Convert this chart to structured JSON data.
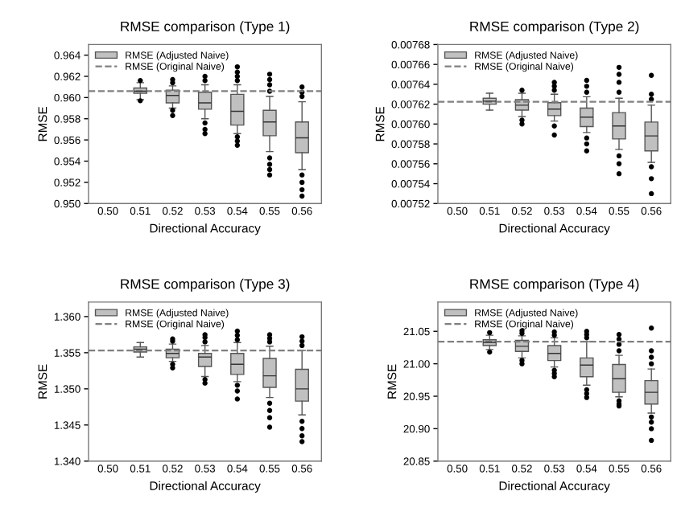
{
  "chart_data": [
    {
      "type": "box",
      "title": "RMSE comparison (Type 1)",
      "xlabel": "Directional Accuracy",
      "ylabel": "RMSE",
      "categories": [
        "0.50",
        "0.51",
        "0.52",
        "0.53",
        "0.54",
        "0.55",
        "0.56"
      ],
      "ylim": [
        0.95,
        0.965
      ],
      "yticks": [
        {
          "value": 0.95,
          "label": "0.950"
        },
        0.952,
        0.954,
        0.956,
        0.958,
        {
          "value": 0.96,
          "label": "0.960"
        },
        0.962,
        0.964
      ],
      "series": [
        {
          "name": "RMSE (Adjusted Naive)",
          "color": "#c0c0c0",
          "boxes": [
            null,
            {
              "low": 0.9598,
              "q1": 0.9604,
              "median": 0.9606,
              "q3": 0.9609,
              "high": 0.9614,
              "outliers": [
                0.9616,
                0.9597
              ]
            },
            {
              "low": 0.959,
              "q1": 0.9595,
              "median": 0.9602,
              "q3": 0.9607,
              "high": 0.9611,
              "outliers": [
                0.9614,
                0.9617,
                0.9588,
                0.9583
              ]
            },
            {
              "low": 0.958,
              "q1": 0.9589,
              "median": 0.9595,
              "q3": 0.9605,
              "high": 0.9612,
              "outliers": [
                0.9616,
                0.962,
                0.9576,
                0.957,
                0.9566
              ]
            },
            {
              "low": 0.9566,
              "q1": 0.9574,
              "median": 0.9587,
              "q3": 0.9603,
              "high": 0.9612,
              "outliers": [
                0.9616,
                0.962,
                0.9624,
                0.9629,
                0.9563,
                0.9559,
                0.9555
              ]
            },
            {
              "low": 0.9549,
              "q1": 0.9564,
              "median": 0.9577,
              "q3": 0.9588,
              "high": 0.9601,
              "outliers": [
                0.9606,
                0.9612,
                0.9617,
                0.9622,
                0.9543,
                0.9537,
                0.9532,
                0.9527
              ]
            },
            {
              "low": 0.9532,
              "q1": 0.9548,
              "median": 0.9562,
              "q3": 0.9577,
              "high": 0.9596,
              "outliers": [
                0.9601,
                0.9605,
                0.961,
                0.9527,
                0.952,
                0.9513,
                0.9507
              ]
            }
          ]
        }
      ],
      "ref_lines": [
        {
          "axis": "y",
          "value": 0.9606,
          "label": "RMSE (Original Naive)",
          "color": "#808080",
          "line_style": "dashed"
        }
      ],
      "legend": "top left"
    },
    {
      "type": "box",
      "title": "RMSE comparison (Type 2)",
      "xlabel": "Directional Accuracy",
      "ylabel": "RMSE",
      "categories": [
        "0.50",
        "0.51",
        "0.52",
        "0.53",
        "0.54",
        "0.55",
        "0.56"
      ],
      "ylim": [
        0.00752,
        0.00768
      ],
      "yticks": [
        0.00752,
        0.00754,
        0.00756,
        0.00758,
        {
          "value": 0.0076,
          "label": "0.00760"
        },
        0.00762,
        0.00764,
        0.00766,
        0.00768
      ],
      "series": [
        {
          "name": "RMSE (Adjusted Naive)",
          "color": "#c0c0c0",
          "boxes": [
            null,
            {
              "low": 0.007614,
              "q1": 0.00762,
              "median": 0.007623,
              "q3": 0.007626,
              "high": 0.007631
            },
            {
              "low": 0.0076075,
              "q1": 0.007614,
              "median": 0.007619,
              "q3": 0.0076245,
              "high": 0.007631,
              "outliers": [
                0.007634,
                0.007604,
                0.0076
              ]
            },
            {
              "low": 0.007603,
              "q1": 0.0076085,
              "median": 0.007615,
              "q3": 0.0076215,
              "high": 0.00763,
              "outliers": [
                0.007634,
                0.007638,
                0.007642,
                0.007598,
                0.007589
              ]
            },
            {
              "low": 0.0075915,
              "q1": 0.0075975,
              "median": 0.007607,
              "q3": 0.007616,
              "high": 0.0076275,
              "outliers": [
                0.007632,
                0.007638,
                0.007644,
                0.007586,
                0.00758,
                0.007573
              ]
            },
            {
              "low": 0.0075745,
              "q1": 0.007585,
              "median": 0.007598,
              "q3": 0.0076115,
              "high": 0.007626,
              "outliers": [
                0.007632,
                0.007642,
                0.00765,
                0.007657,
                0.007568,
                0.00756,
                0.00755
              ]
            },
            {
              "low": 0.0075615,
              "q1": 0.007573,
              "median": 0.007588,
              "q3": 0.007602,
              "high": 0.007619,
              "outliers": [
                0.007625,
                0.00763,
                0.007649,
                0.007557,
                0.007545,
                0.00753
              ]
            }
          ]
        }
      ],
      "ref_lines": [
        {
          "axis": "y",
          "value": 0.0076225,
          "label": "RMSE (Original Naive)",
          "color": "#808080",
          "line_style": "dashed"
        }
      ],
      "legend": "top left"
    },
    {
      "type": "box",
      "title": "RMSE comparison (Type 3)",
      "xlabel": "Directional Accuracy",
      "ylabel": "RMSE",
      "categories": [
        "0.50",
        "0.51",
        "0.52",
        "0.53",
        "0.54",
        "0.55",
        "0.56"
      ],
      "ylim": [
        1.34,
        1.362
      ],
      "yticks": [
        {
          "value": 1.34,
          "label": "1.340"
        },
        {
          "value": 1.345,
          "label": "1.345"
        },
        {
          "value": 1.35,
          "label": "1.350"
        },
        {
          "value": 1.355,
          "label": "1.355"
        },
        {
          "value": 1.36,
          "label": "1.360"
        }
      ],
      "series": [
        {
          "name": "RMSE (Adjusted Naive)",
          "color": "#c0c0c0",
          "boxes": [
            null,
            {
              "low": 1.3544,
              "q1": 1.3551,
              "median": 1.3555,
              "q3": 1.3558,
              "high": 1.3564
            },
            {
              "low": 1.3538,
              "q1": 1.3543,
              "median": 1.3549,
              "q3": 1.3555,
              "high": 1.3562,
              "outliers": [
                1.3566,
                1.3569,
                1.3534,
                1.3529
              ]
            },
            {
              "low": 1.3517,
              "q1": 1.3531,
              "median": 1.3544,
              "q3": 1.3549,
              "high": 1.356,
              "outliers": [
                1.3565,
                1.3571,
                1.3575,
                1.3513,
                1.3508
              ]
            },
            {
              "low": 1.351,
              "q1": 1.352,
              "median": 1.3534,
              "q3": 1.3549,
              "high": 1.3564,
              "outliers": [
                1.3568,
                1.3574,
                1.358,
                1.3505,
                1.3497,
                1.3486
              ]
            },
            {
              "low": 1.3488,
              "q1": 1.3502,
              "median": 1.3518,
              "q3": 1.3542,
              "high": 1.3559,
              "outliers": [
                1.3565,
                1.357,
                1.3575,
                1.348,
                1.347,
                1.346,
                1.3447
              ]
            },
            {
              "low": 1.3464,
              "q1": 1.3483,
              "median": 1.35,
              "q3": 1.3527,
              "high": 1.3553,
              "outliers": [
                1.356,
                1.3566,
                1.3572,
                1.3455,
                1.3445,
                1.3435,
                1.3427
              ]
            }
          ]
        }
      ],
      "ref_lines": [
        {
          "axis": "y",
          "value": 1.3553,
          "label": "RMSE (Original Naive)",
          "color": "#808080",
          "line_style": "dashed"
        }
      ],
      "legend": "top left"
    },
    {
      "type": "box",
      "title": "RMSE comparison (Type 4)",
      "xlabel": "Directional Accuracy",
      "ylabel": "RMSE",
      "categories": [
        "0.50",
        "0.51",
        "0.52",
        "0.53",
        "0.54",
        "0.55",
        "0.56"
      ],
      "ylim": [
        20.85,
        21.095
      ],
      "yticks": [
        20.85,
        {
          "value": 20.9,
          "label": "20.90"
        },
        20.95,
        {
          "value": 21.0,
          "label": "21.00"
        },
        21.05
      ],
      "series": [
        {
          "name": "RMSE (Adjusted Naive)",
          "color": "#c0c0c0",
          "boxes": [
            null,
            {
              "low": 21.022,
              "q1": 21.028,
              "median": 21.033,
              "q3": 21.037,
              "high": 21.044,
              "outliers": [
                21.048,
                21.018
              ]
            },
            {
              "low": 21.009,
              "q1": 21.019,
              "median": 21.027,
              "q3": 21.036,
              "high": 21.043,
              "outliers": [
                21.047,
                21.051,
                21.005,
                21.0
              ]
            },
            {
              "low": 20.995,
              "q1": 21.005,
              "median": 21.016,
              "q3": 21.028,
              "high": 21.04,
              "outliers": [
                21.044,
                21.049,
                20.99,
                20.985,
                20.98
              ]
            },
            {
              "low": 20.967,
              "q1": 20.98,
              "median": 20.998,
              "q3": 21.009,
              "high": 21.034,
              "outliers": [
                21.04,
                21.045,
                21.05,
                20.96,
                20.954,
                20.948
              ]
            },
            {
              "low": 20.949,
              "q1": 20.956,
              "median": 20.977,
              "q3": 20.999,
              "high": 21.013,
              "outliers": [
                21.02,
                21.03,
                21.038,
                21.045,
                20.943,
                20.938,
                20.935
              ]
            },
            {
              "low": 20.924,
              "q1": 20.938,
              "median": 20.956,
              "q3": 20.974,
              "high": 20.992,
              "outliers": [
                21.0,
                21.01,
                21.02,
                21.055,
                20.918,
                20.91,
                20.9,
                20.882
              ]
            }
          ]
        }
      ],
      "ref_lines": [
        {
          "axis": "y",
          "value": 21.034,
          "label": "RMSE (Original Naive)",
          "color": "#808080",
          "line_style": "dashed"
        }
      ],
      "legend": "top left"
    }
  ]
}
